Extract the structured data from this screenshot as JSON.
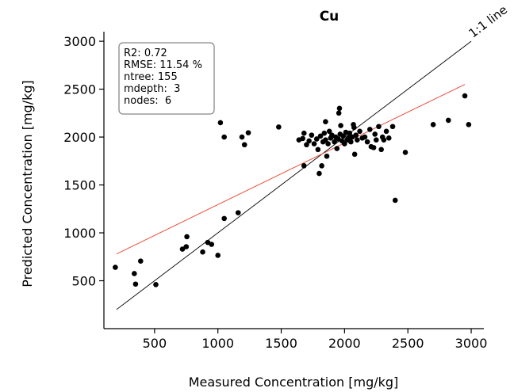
{
  "chart_data": {
    "type": "scatter",
    "title": "Cu",
    "xlabel": "Measured Concentration [mg/kg]",
    "ylabel": "Predicted Concentration [mg/kg]",
    "xlim": [
      100,
      3100
    ],
    "ylim": [
      0,
      3100
    ],
    "xticks": [
      500,
      1000,
      1500,
      2000,
      2500,
      3000
    ],
    "xtick_labels": [
      "500",
      "1000",
      "1500",
      "2000",
      "2500",
      "3000"
    ],
    "yticks": [
      500,
      1000,
      1500,
      2000,
      2500,
      3000
    ],
    "ytick_labels": [
      "500",
      "1000",
      "1500",
      "2000",
      "2500",
      "3000"
    ],
    "grid": false,
    "point_color": "#000000",
    "identity_line": {
      "label": "1:1 line",
      "color": "#000000",
      "from": [
        200,
        200
      ],
      "to": [
        3000,
        3000
      ]
    },
    "regression_line": {
      "color": "#e8503a",
      "from": [
        200,
        780
      ],
      "to": [
        2950,
        2550
      ]
    },
    "stats_box": {
      "lines": [
        "R2: 0.72",
        "RMSE: 11.54 %",
        "ntree: 155",
        "mdepth:  3",
        "nodes:  6"
      ]
    },
    "points": [
      [
        190,
        640
      ],
      [
        340,
        575
      ],
      [
        350,
        465
      ],
      [
        390,
        705
      ],
      [
        510,
        460
      ],
      [
        720,
        830
      ],
      [
        750,
        855
      ],
      [
        755,
        960
      ],
      [
        880,
        800
      ],
      [
        920,
        900
      ],
      [
        950,
        880
      ],
      [
        1000,
        765
      ],
      [
        1020,
        2150
      ],
      [
        1050,
        2000
      ],
      [
        1050,
        1150
      ],
      [
        1160,
        1210
      ],
      [
        1190,
        2000
      ],
      [
        1210,
        1920
      ],
      [
        1240,
        2045
      ],
      [
        1480,
        2105
      ],
      [
        1640,
        1970
      ],
      [
        1670,
        1985
      ],
      [
        1680,
        2040
      ],
      [
        1680,
        1700
      ],
      [
        1700,
        1920
      ],
      [
        1720,
        1960
      ],
      [
        1740,
        2020
      ],
      [
        1760,
        1930
      ],
      [
        1780,
        1980
      ],
      [
        1790,
        1870
      ],
      [
        1800,
        1620
      ],
      [
        1810,
        2010
      ],
      [
        1820,
        1700
      ],
      [
        1830,
        1950
      ],
      [
        1840,
        2040
      ],
      [
        1850,
        1970
      ],
      [
        1850,
        2160
      ],
      [
        1860,
        1800
      ],
      [
        1870,
        1930
      ],
      [
        1880,
        2060
      ],
      [
        1890,
        1990
      ],
      [
        1900,
        2020
      ],
      [
        1920,
        1950
      ],
      [
        1930,
        2000
      ],
      [
        1940,
        1880
      ],
      [
        1950,
        1980
      ],
      [
        1955,
        2250
      ],
      [
        1960,
        2300
      ],
      [
        1965,
        2030
      ],
      [
        1970,
        2120
      ],
      [
        1980,
        1960
      ],
      [
        1990,
        2010
      ],
      [
        2000,
        1930
      ],
      [
        2010,
        2050
      ],
      [
        2020,
        1970
      ],
      [
        2030,
        1990
      ],
      [
        2040,
        2040
      ],
      [
        2050,
        1950
      ],
      [
        2060,
        2000
      ],
      [
        2070,
        2130
      ],
      [
        2075,
        2100
      ],
      [
        2080,
        1820
      ],
      [
        2090,
        2020
      ],
      [
        2100,
        1970
      ],
      [
        2120,
        2060
      ],
      [
        2140,
        1990
      ],
      [
        2160,
        2000
      ],
      [
        2180,
        1950
      ],
      [
        2200,
        2080
      ],
      [
        2210,
        1900
      ],
      [
        2230,
        1890
      ],
      [
        2240,
        2030
      ],
      [
        2250,
        1970
      ],
      [
        2270,
        2110
      ],
      [
        2290,
        1870
      ],
      [
        2300,
        2000
      ],
      [
        2310,
        1970
      ],
      [
        2330,
        2060
      ],
      [
        2350,
        1990
      ],
      [
        2380,
        2110
      ],
      [
        2400,
        1340
      ],
      [
        2480,
        1840
      ],
      [
        2700,
        2130
      ],
      [
        2820,
        2175
      ],
      [
        2950,
        2430
      ],
      [
        2980,
        2130
      ]
    ]
  }
}
